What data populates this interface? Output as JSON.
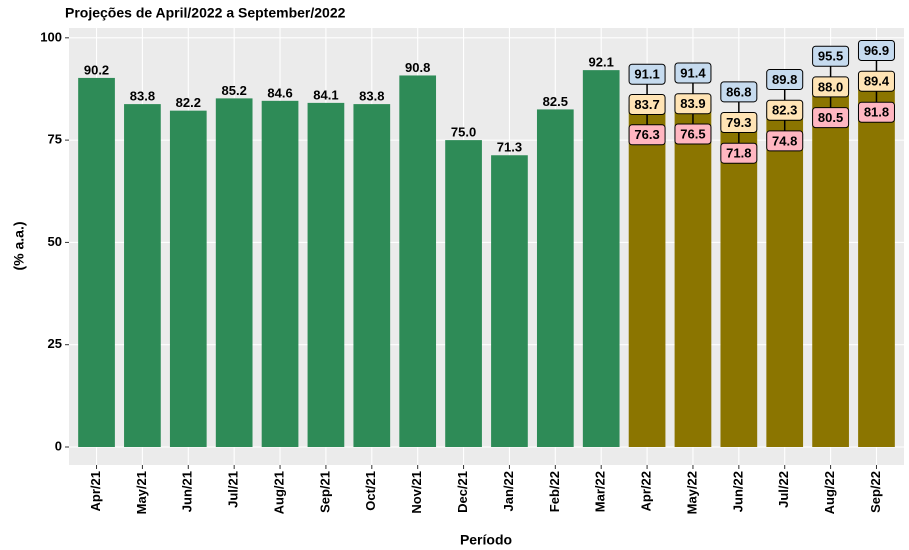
{
  "chart_data": {
    "type": "bar",
    "title": "Projeções de April/2022 a September/2022",
    "x_label": "Período",
    "y_label": "(% a.a.)",
    "categories": [
      "Apr/21",
      "May/21",
      "Jun/21",
      "Jul/21",
      "Aug/21",
      "Sep/21",
      "Oct/21",
      "Nov/21",
      "Dec/21",
      "Jan/22",
      "Feb/22",
      "Mar/22",
      "Apr/22",
      "May/22",
      "Jun/22",
      "Jul/22",
      "Aug/22",
      "Sep/22"
    ],
    "values": [
      90.2,
      83.8,
      82.2,
      85.2,
      84.6,
      84.1,
      83.8,
      90.8,
      75.0,
      71.3,
      82.5,
      92.1,
      83.7,
      83.9,
      79.3,
      82.3,
      88.0,
      89.4
    ],
    "value_labels": [
      "90.2",
      "83.8",
      "82.2",
      "85.2",
      "84.6",
      "84.1",
      "83.8",
      "90.8",
      "75.0",
      "71.3",
      "82.5",
      "92.1",
      "83.7",
      "83.9",
      "79.3",
      "82.3",
      "88.0",
      "89.4"
    ],
    "low": [
      null,
      null,
      null,
      null,
      null,
      null,
      null,
      null,
      null,
      null,
      null,
      null,
      76.3,
      76.5,
      71.8,
      74.8,
      80.5,
      81.8
    ],
    "high": [
      null,
      null,
      null,
      null,
      null,
      null,
      null,
      null,
      null,
      null,
      null,
      null,
      91.1,
      91.4,
      86.8,
      89.8,
      95.5,
      96.9
    ],
    "colors": [
      "#2E8B57",
      "#2E8B57",
      "#2E8B57",
      "#2E8B57",
      "#2E8B57",
      "#2E8B57",
      "#2E8B57",
      "#2E8B57",
      "#2E8B57",
      "#2E8B57",
      "#2E8B57",
      "#2E8B57",
      "#8B7500",
      "#8B7500",
      "#8B7500",
      "#8B7500",
      "#8B7500",
      "#8B7500"
    ],
    "low_color": "#FFB6C1",
    "median_color": "#FFE4B5",
    "high_color": "#C6DBEF",
    "ylim": [
      -4.4,
      102.4
    ],
    "yticks": [
      0,
      25,
      50,
      75,
      100
    ],
    "grid": true
  }
}
